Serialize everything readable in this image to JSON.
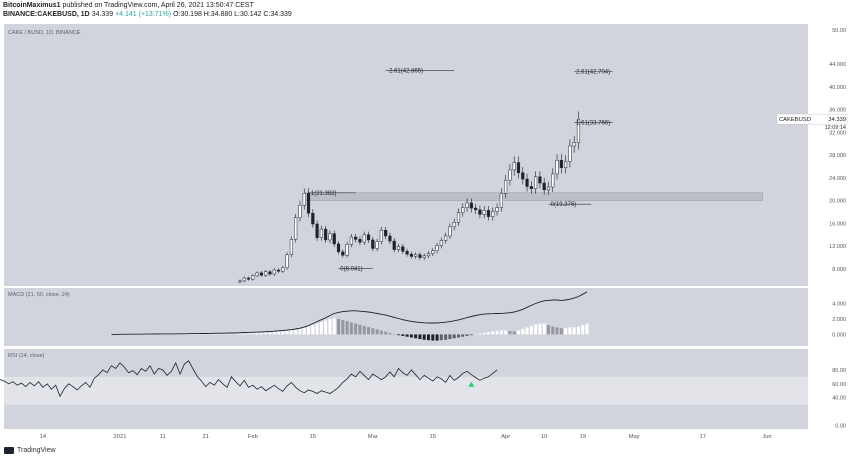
{
  "header": {
    "author": "BitcoinMaximus1",
    "published": "published on TradingView.com, April 26, 2021 13:50:47 CEST",
    "symbol": "BINANCE:CAKEBUSD, 1D",
    "last": "34.339",
    "change": "+4.141 (+13.71%)",
    "ohlc": "O:30.198 H:34.880 L:30.142 C:34.339"
  },
  "footer": {
    "brand": "TradingView"
  },
  "colors": {
    "bg": "#d1d4dc",
    "rsi_band": "#e2e4ea",
    "up": "#ffffff",
    "down": "#1e222d",
    "signal": "#26d07c"
  },
  "chart_data": [
    {
      "type": "candlestick",
      "title": "CAKE / BUSD, 1D, BINANCE",
      "symbol_label": "CAKEBUSD",
      "price_label": "34.339",
      "countdown": "12:09:14",
      "ylim": [
        5,
        50
      ],
      "yticks": [
        "50.00",
        "44.000",
        "40.000",
        "36.000",
        "32.000",
        "28.000",
        "24.000",
        "20.000",
        "16.000",
        "12.000",
        "8.000"
      ],
      "xticks": [
        {
          "label": "14",
          "day": -18
        },
        {
          "label": "2021",
          "day": 0
        },
        {
          "label": "11",
          "day": 10
        },
        {
          "label": "21",
          "day": 20
        },
        {
          "label": "Feb",
          "day": 31
        },
        {
          "label": "15",
          "day": 45
        },
        {
          "label": "Mar",
          "day": 59
        },
        {
          "label": "15",
          "day": 73
        },
        {
          "label": "Apr",
          "day": 90
        },
        {
          "label": "10",
          "day": 99
        },
        {
          "label": "19",
          "day": 108
        },
        {
          "label": "May",
          "day": 120
        },
        {
          "label": "17",
          "day": 136
        },
        {
          "label": "Jun",
          "day": 151
        }
      ],
      "start_day": 28,
      "closes": [
        5.9,
        6.4,
        6.2,
        6.8,
        7.3,
        6.9,
        7.5,
        7.1,
        7.8,
        7.6,
        8.2,
        10.5,
        13.2,
        17.0,
        19.2,
        21.3,
        17.8,
        15.9,
        13.5,
        15.0,
        13.1,
        14.2,
        12.4,
        11.0,
        10.4,
        12.3,
        13.6,
        13.2,
        12.7,
        14.0,
        13.1,
        11.6,
        12.8,
        14.8,
        13.8,
        12.9,
        11.4,
        11.9,
        11.1,
        10.6,
        10.2,
        10.5,
        10.0,
        10.3,
        10.7,
        11.2,
        12.1,
        13.0,
        13.8,
        15.4,
        16.2,
        17.9,
        18.8,
        19.6,
        18.7,
        18.4,
        17.6,
        18.3,
        17.2,
        18.1,
        18.8,
        21.3,
        23.6,
        25.4,
        26.7,
        24.9,
        23.8,
        22.5,
        22.1,
        24.2,
        23.1,
        21.9,
        22.4,
        24.7,
        27.1,
        25.8,
        26.9,
        29.6,
        30.2,
        34.3
      ],
      "annotations": [
        {
          "label": "2.61(42.865)",
          "price": 42.865,
          "start_day": 62,
          "end_day": 78
        },
        {
          "label": "2.61(42.704)",
          "price": 42.704,
          "start_day": 106,
          "end_day": 115
        },
        {
          "label": "1.61(33.766)",
          "price": 33.766,
          "start_day": 106,
          "end_day": 115
        },
        {
          "label": "1(21.382)",
          "price": 21.382,
          "start_day": 44,
          "end_day": 55
        },
        {
          "label": "0(19.376)",
          "price": 19.376,
          "start_day": 100,
          "end_day": 110
        },
        {
          "label": "0(8.041)",
          "price": 8.041,
          "start_day": 51,
          "end_day": 59
        }
      ],
      "zone": {
        "low": 20.0,
        "high": 21.4,
        "start_day": 43,
        "end_day": 150
      }
    },
    {
      "type": "bar+line",
      "title": "MACD (21, 50, close, 24)",
      "ylim": [
        -1.5,
        6.0
      ],
      "yticks": [
        "4.000",
        "2.000",
        "0.000"
      ],
      "histogram": [
        0.0,
        0.0,
        0.0,
        0.0,
        0.0,
        0.0,
        0.0,
        0.0,
        0.0,
        0.0,
        0.0,
        0.0,
        0.0,
        0.0,
        0.0,
        0.0,
        0.0,
        0.0,
        0.0,
        0.0,
        0.0,
        0.0,
        0.0,
        0.0,
        0.0,
        0.0,
        0.0,
        0.0,
        0.02,
        0.04,
        0.06,
        0.08,
        0.1,
        0.12,
        0.15,
        0.18,
        0.22,
        0.26,
        0.3,
        0.35,
        0.4,
        0.45,
        0.5,
        0.6,
        0.7,
        0.85,
        1.0,
        1.2,
        1.4,
        1.6,
        1.8,
        2.0,
        2.1,
        2.0,
        1.85,
        1.7,
        1.55,
        1.4,
        1.25,
        1.1,
        0.95,
        0.8,
        0.65,
        0.5,
        0.35,
        0.2,
        0.05,
        -0.1,
        -0.2,
        -0.3,
        -0.4,
        -0.5,
        -0.6,
        -0.7,
        -0.75,
        -0.8,
        -0.8,
        -0.75,
        -0.7,
        -0.6,
        -0.5,
        -0.4,
        -0.3,
        -0.2,
        -0.1,
        0.0,
        0.1,
        0.2,
        0.3,
        0.4,
        0.45,
        0.5,
        0.5,
        0.45,
        0.4,
        0.5,
        0.7,
        0.9,
        1.1,
        1.3,
        1.4,
        1.4,
        1.2,
        1.0,
        0.9,
        0.8,
        0.8,
        0.9,
        0.9,
        1.0,
        1.2,
        1.4
      ],
      "macd": [
        0.0,
        0.0,
        0.01,
        0.01,
        0.02,
        0.02,
        0.03,
        0.03,
        0.04,
        0.04,
        0.05,
        0.05,
        0.06,
        0.06,
        0.07,
        0.07,
        0.08,
        0.08,
        0.09,
        0.1,
        0.1,
        0.11,
        0.12,
        0.13,
        0.14,
        0.15,
        0.16,
        0.17,
        0.18,
        0.2,
        0.22,
        0.24,
        0.26,
        0.28,
        0.3,
        0.32,
        0.35,
        0.38,
        0.42,
        0.46,
        0.5,
        0.55,
        0.62,
        0.7,
        0.8,
        0.95,
        1.15,
        1.4,
        1.65,
        1.9,
        2.15,
        2.45,
        2.7,
        2.85,
        2.95,
        3.0,
        3.05,
        3.05,
        3.0,
        2.95,
        2.9,
        2.8,
        2.7,
        2.6,
        2.5,
        2.35,
        2.2,
        2.05,
        1.9,
        1.78,
        1.68,
        1.6,
        1.55,
        1.5,
        1.48,
        1.47,
        1.48,
        1.52,
        1.58,
        1.66,
        1.76,
        1.88,
        2.02,
        2.18,
        2.32,
        2.45,
        2.55,
        2.62,
        2.66,
        2.68,
        2.7,
        2.72,
        2.75,
        2.8,
        2.9,
        3.05,
        3.25,
        3.5,
        3.75,
        4.0,
        4.2,
        4.35,
        4.4,
        4.45,
        4.45,
        4.4,
        4.45,
        4.55,
        4.7,
        4.9,
        5.2,
        5.5
      ]
    },
    {
      "type": "line",
      "title": "RSI (14, close)",
      "ylim": [
        -5,
        110
      ],
      "yticks": [
        "80.00",
        "60.00",
        "40.00",
        "0.00"
      ],
      "band": [
        70,
        30
      ],
      "values": [
        76,
        71,
        68,
        73,
        69,
        62,
        66,
        64,
        60,
        63,
        58,
        61,
        56,
        62,
        57,
        63,
        55,
        60,
        52,
        58,
        42,
        53,
        60,
        56,
        51,
        57,
        62,
        55,
        68,
        73,
        80,
        76,
        86,
        82,
        90,
        84,
        76,
        79,
        73,
        82,
        78,
        86,
        74,
        82,
        80,
        72,
        78,
        90,
        74,
        88,
        93,
        82,
        71,
        64,
        56,
        62,
        58,
        66,
        60,
        55,
        70,
        63,
        57,
        65,
        55,
        58,
        52,
        56,
        50,
        54,
        58,
        53,
        49,
        57,
        62,
        55,
        50,
        47,
        51,
        49,
        46,
        50,
        48,
        46,
        50,
        55,
        62,
        67,
        74,
        70,
        78,
        72,
        66,
        74,
        70,
        66,
        70,
        77,
        70,
        82,
        76,
        72,
        80,
        73,
        66,
        72,
        68,
        64,
        70,
        67,
        62,
        72,
        65,
        69,
        75,
        78,
        73,
        69,
        65,
        68,
        70,
        75,
        80
      ]
    }
  ]
}
